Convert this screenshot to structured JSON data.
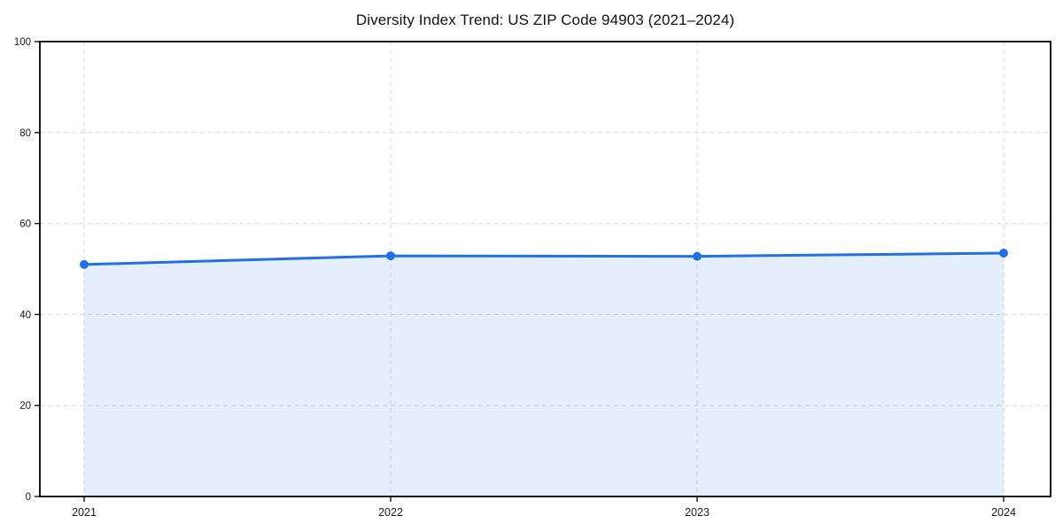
{
  "chart_data": {
    "type": "area",
    "title": "Diversity Index Trend: US ZIP Code 94903 (2021–2024)",
    "x": [
      2021,
      2022,
      2023,
      2024
    ],
    "series": [
      {
        "name": "Diversity Index",
        "values": [
          51.0,
          52.9,
          52.8,
          53.5
        ]
      }
    ],
    "xlabel": "",
    "ylabel": "",
    "xlim": [
      2020.85,
      2024.15
    ],
    "ylim": [
      0,
      100
    ],
    "yticks": [
      0,
      20,
      40,
      60,
      80,
      100
    ],
    "xticks": [
      2021,
      2022,
      2023,
      2024
    ],
    "grid": true,
    "grid_style": "dashed",
    "legend": "none",
    "marker": "circle",
    "colors": {
      "line": "#2270e6",
      "fill": "#e8f0fc",
      "fill_opacity": "0.12",
      "grid": "#d9d9d9",
      "spine": "#000000",
      "tick_text": "#1a1a1a",
      "background": "#ffffff"
    }
  }
}
